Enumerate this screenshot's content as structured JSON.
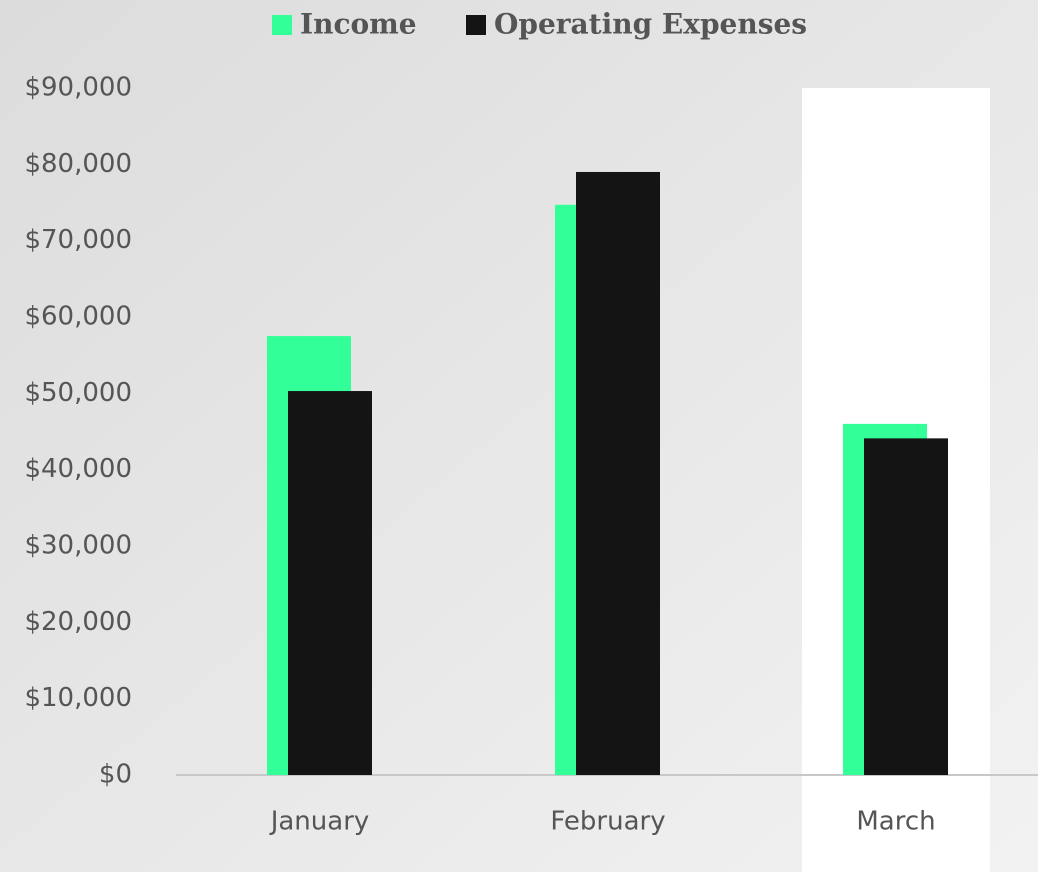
{
  "chart_data": {
    "type": "bar",
    "categories": [
      "January",
      "February",
      "March"
    ],
    "series": [
      {
        "name": "Income",
        "color": "#33ff99",
        "values": [
          57500,
          74700,
          46000
        ]
      },
      {
        "name": "Operating Expenses",
        "color": "#141414",
        "values": [
          50300,
          79000,
          44100
        ]
      }
    ],
    "ylim": [
      0,
      90000
    ],
    "yticks": [
      {
        "value": 0,
        "label": "$0"
      },
      {
        "value": 10000,
        "label": "$10,000"
      },
      {
        "value": 20000,
        "label": "$20,000"
      },
      {
        "value": 30000,
        "label": "$30,000"
      },
      {
        "value": 40000,
        "label": "$40,000"
      },
      {
        "value": 50000,
        "label": "$50,000"
      },
      {
        "value": 60000,
        "label": "$60,000"
      },
      {
        "value": 70000,
        "label": "$70,000"
      },
      {
        "value": 80000,
        "label": "$80,000"
      },
      {
        "value": 90000,
        "label": "$90,000"
      }
    ],
    "grid": false,
    "highlight": "March",
    "legend": "top"
  }
}
